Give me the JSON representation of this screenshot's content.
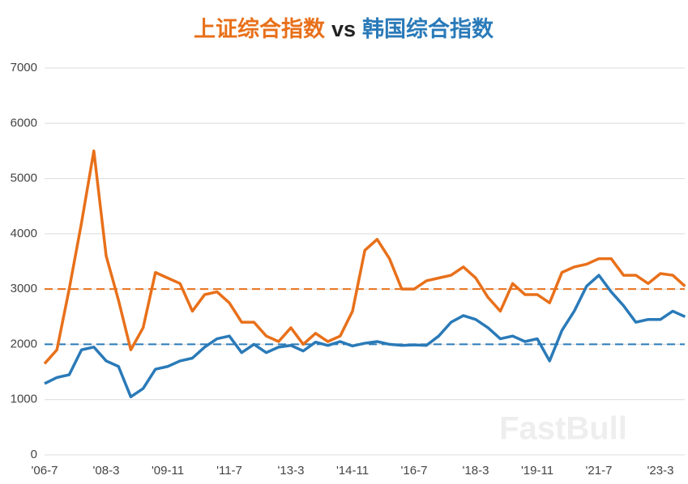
{
  "chart_data": {
    "type": "line",
    "title_separator": "vs",
    "watermark": "FastBull",
    "categories": [
      "'06-7",
      null,
      null,
      null,
      null,
      "'08-3",
      null,
      null,
      null,
      null,
      "'09-11",
      null,
      null,
      null,
      null,
      "'11-7",
      null,
      null,
      null,
      null,
      "'13-3",
      null,
      null,
      null,
      null,
      "'14-11",
      null,
      null,
      null,
      null,
      "'16-7",
      null,
      null,
      null,
      null,
      "'18-3",
      null,
      null,
      null,
      null,
      "'19-11",
      null,
      null,
      null,
      null,
      "'21-7",
      null,
      null,
      null,
      null,
      "'23-3",
      null,
      null
    ],
    "series": [
      {
        "name": "上证综合指数",
        "color": "#e8701a",
        "values": [
          1650,
          1900,
          3000,
          4200,
          5500,
          3600,
          2800,
          1900,
          2300,
          3300,
          3200,
          3100,
          2600,
          2900,
          2950,
          2750,
          2400,
          2400,
          2150,
          2050,
          2300,
          2000,
          2200,
          2050,
          2150,
          2600,
          3700,
          3900,
          3550,
          3000,
          3000,
          3150,
          3200,
          3250,
          3400,
          3200,
          2850,
          2600,
          3100,
          2900,
          2900,
          2750,
          3300,
          3400,
          3450,
          3550,
          3550,
          3250,
          3250,
          3100,
          3280,
          3250,
          3050
        ]
      },
      {
        "name": "韩国综合指数",
        "color": "#2a7ab8",
        "values": [
          1290,
          1400,
          1450,
          1900,
          1950,
          1700,
          1600,
          1050,
          1200,
          1550,
          1600,
          1700,
          1750,
          1950,
          2100,
          2150,
          1850,
          2000,
          1850,
          1950,
          1980,
          1880,
          2040,
          1980,
          2050,
          1970,
          2020,
          2050,
          2000,
          1980,
          1990,
          1980,
          2150,
          2400,
          2520,
          2450,
          2300,
          2100,
          2150,
          2050,
          2100,
          1700,
          2250,
          2600,
          3050,
          3250,
          2950,
          2700,
          2400,
          2450,
          2450,
          2600,
          2500
        ]
      }
    ],
    "reference_lines": [
      {
        "value": 3000,
        "color": "#e8701a"
      },
      {
        "value": 2000,
        "color": "#2a7ab8"
      }
    ],
    "ylim": [
      0,
      7000
    ],
    "yticks": [
      0,
      1000,
      2000,
      3000,
      4000,
      5000,
      6000,
      7000
    ],
    "grid": true
  }
}
